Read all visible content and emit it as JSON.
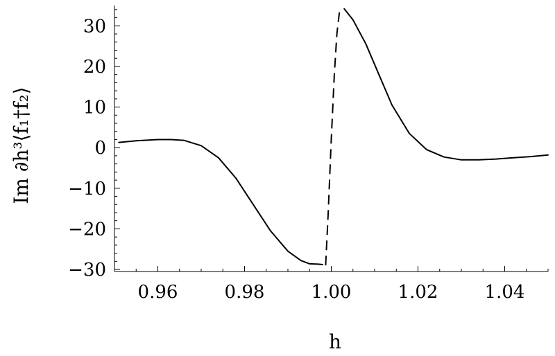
{
  "chart_data": {
    "type": "line",
    "title": "",
    "xlabel": "h",
    "ylabel": "Im ∂h³⟨f₁†f₂⟩",
    "xlim": [
      0.95,
      1.05
    ],
    "ylim": [
      -30.5,
      35
    ],
    "x_ticks": [
      "0.96",
      "0.98",
      "1.00",
      "1.02",
      "1.04"
    ],
    "y_ticks": [
      "-30",
      "-20",
      "-10",
      "0",
      "10",
      "20",
      "30"
    ],
    "grid": false,
    "legend": "none",
    "series": [
      {
        "style": "solid",
        "x": [
          0.951,
          0.955,
          0.96,
          0.963,
          0.966,
          0.97,
          0.974,
          0.978,
          0.982,
          0.986,
          0.99,
          0.993,
          0.995,
          0.997,
          0.998
        ],
        "y": [
          1.3,
          1.7,
          2.0,
          2.0,
          1.8,
          0.5,
          -2.5,
          -7.5,
          -14.0,
          -20.5,
          -25.5,
          -27.8,
          -28.6,
          -28.7,
          -28.8
        ]
      },
      {
        "style": "dashed",
        "x": [
          0.9987,
          0.9993,
          1.0,
          1.0007,
          1.0013,
          1.002
        ],
        "y": [
          -29.0,
          -16.0,
          2.0,
          18.0,
          28.0,
          34.5
        ]
      },
      {
        "style": "solid",
        "x": [
          1.003,
          1.005,
          1.008,
          1.011,
          1.014,
          1.018,
          1.022,
          1.026,
          1.03,
          1.034,
          1.038,
          1.042,
          1.046,
          1.05
        ],
        "y": [
          34.2,
          31.5,
          25.5,
          18.0,
          10.5,
          3.5,
          -0.5,
          -2.3,
          -3.0,
          -3.0,
          -2.8,
          -2.5,
          -2.2,
          -1.8
        ]
      }
    ]
  }
}
